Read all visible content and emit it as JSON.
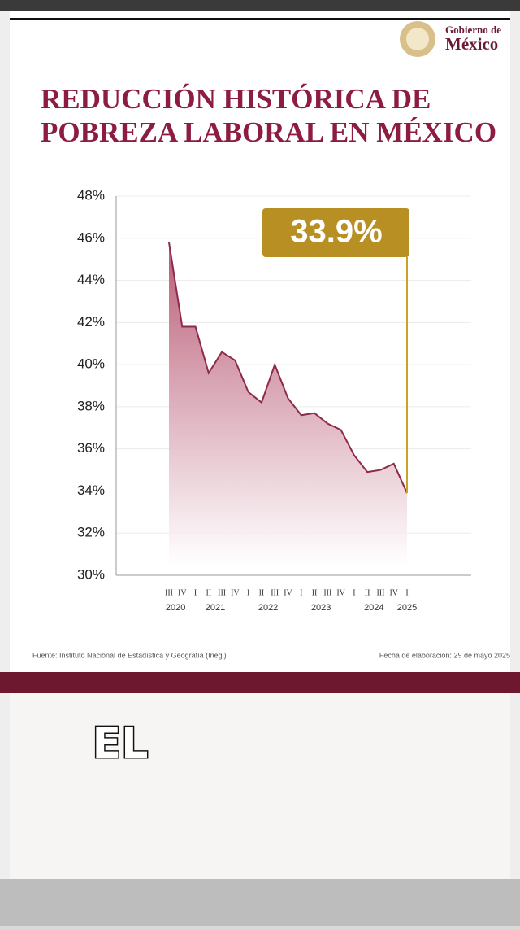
{
  "header": {
    "brand_top": "Gobierno de",
    "brand_bottom": "México"
  },
  "chart_data": {
    "type": "area",
    "title": [
      "REDUCCIÓN HISTÓRICA DE",
      "POBREZA LABORAL EN MÉXICO"
    ],
    "categories": [
      "III",
      "IV",
      "I",
      "II",
      "III",
      "IV",
      "I",
      "II",
      "III",
      "IV",
      "I",
      "II",
      "III",
      "IV",
      "I",
      "II",
      "III",
      "IV",
      "I"
    ],
    "years": [
      "2020",
      "2021",
      "2022",
      "2023",
      "2024",
      "2025"
    ],
    "values": [
      45.8,
      41.8,
      41.8,
      39.6,
      40.6,
      40.2,
      38.7,
      38.2,
      40.0,
      38.4,
      37.6,
      37.7,
      37.2,
      36.9,
      35.7,
      34.9,
      35.0,
      35.3,
      33.9
    ],
    "value_labels": [
      null,
      null,
      null,
      null,
      null,
      null,
      null,
      null,
      null,
      null,
      null,
      null,
      null,
      null,
      null,
      null,
      null,
      null,
      "33.9%"
    ],
    "color": "#8e2a4a",
    "ylim": [
      30,
      48
    ],
    "yticks": [
      {
        "value": 30,
        "label": "30%"
      },
      {
        "value": 32,
        "label": "32%"
      },
      {
        "value": 34,
        "label": "34%"
      },
      {
        "value": 36,
        "label": "36%"
      },
      {
        "value": 38,
        "label": "38%"
      },
      {
        "value": 40,
        "label": "40%"
      },
      {
        "value": 42,
        "label": "42%"
      },
      {
        "value": 44,
        "label": "44%"
      },
      {
        "value": 46,
        "label": "46%"
      },
      {
        "value": 48,
        "label": "48%"
      }
    ],
    "grid": true
  },
  "footer": {
    "source": "Fuente: Instituto Nacional de Estadística y Geografía (Inegi)",
    "date": "Fecha de elaboración: 29 de mayo 2025"
  },
  "caption": "EL"
}
